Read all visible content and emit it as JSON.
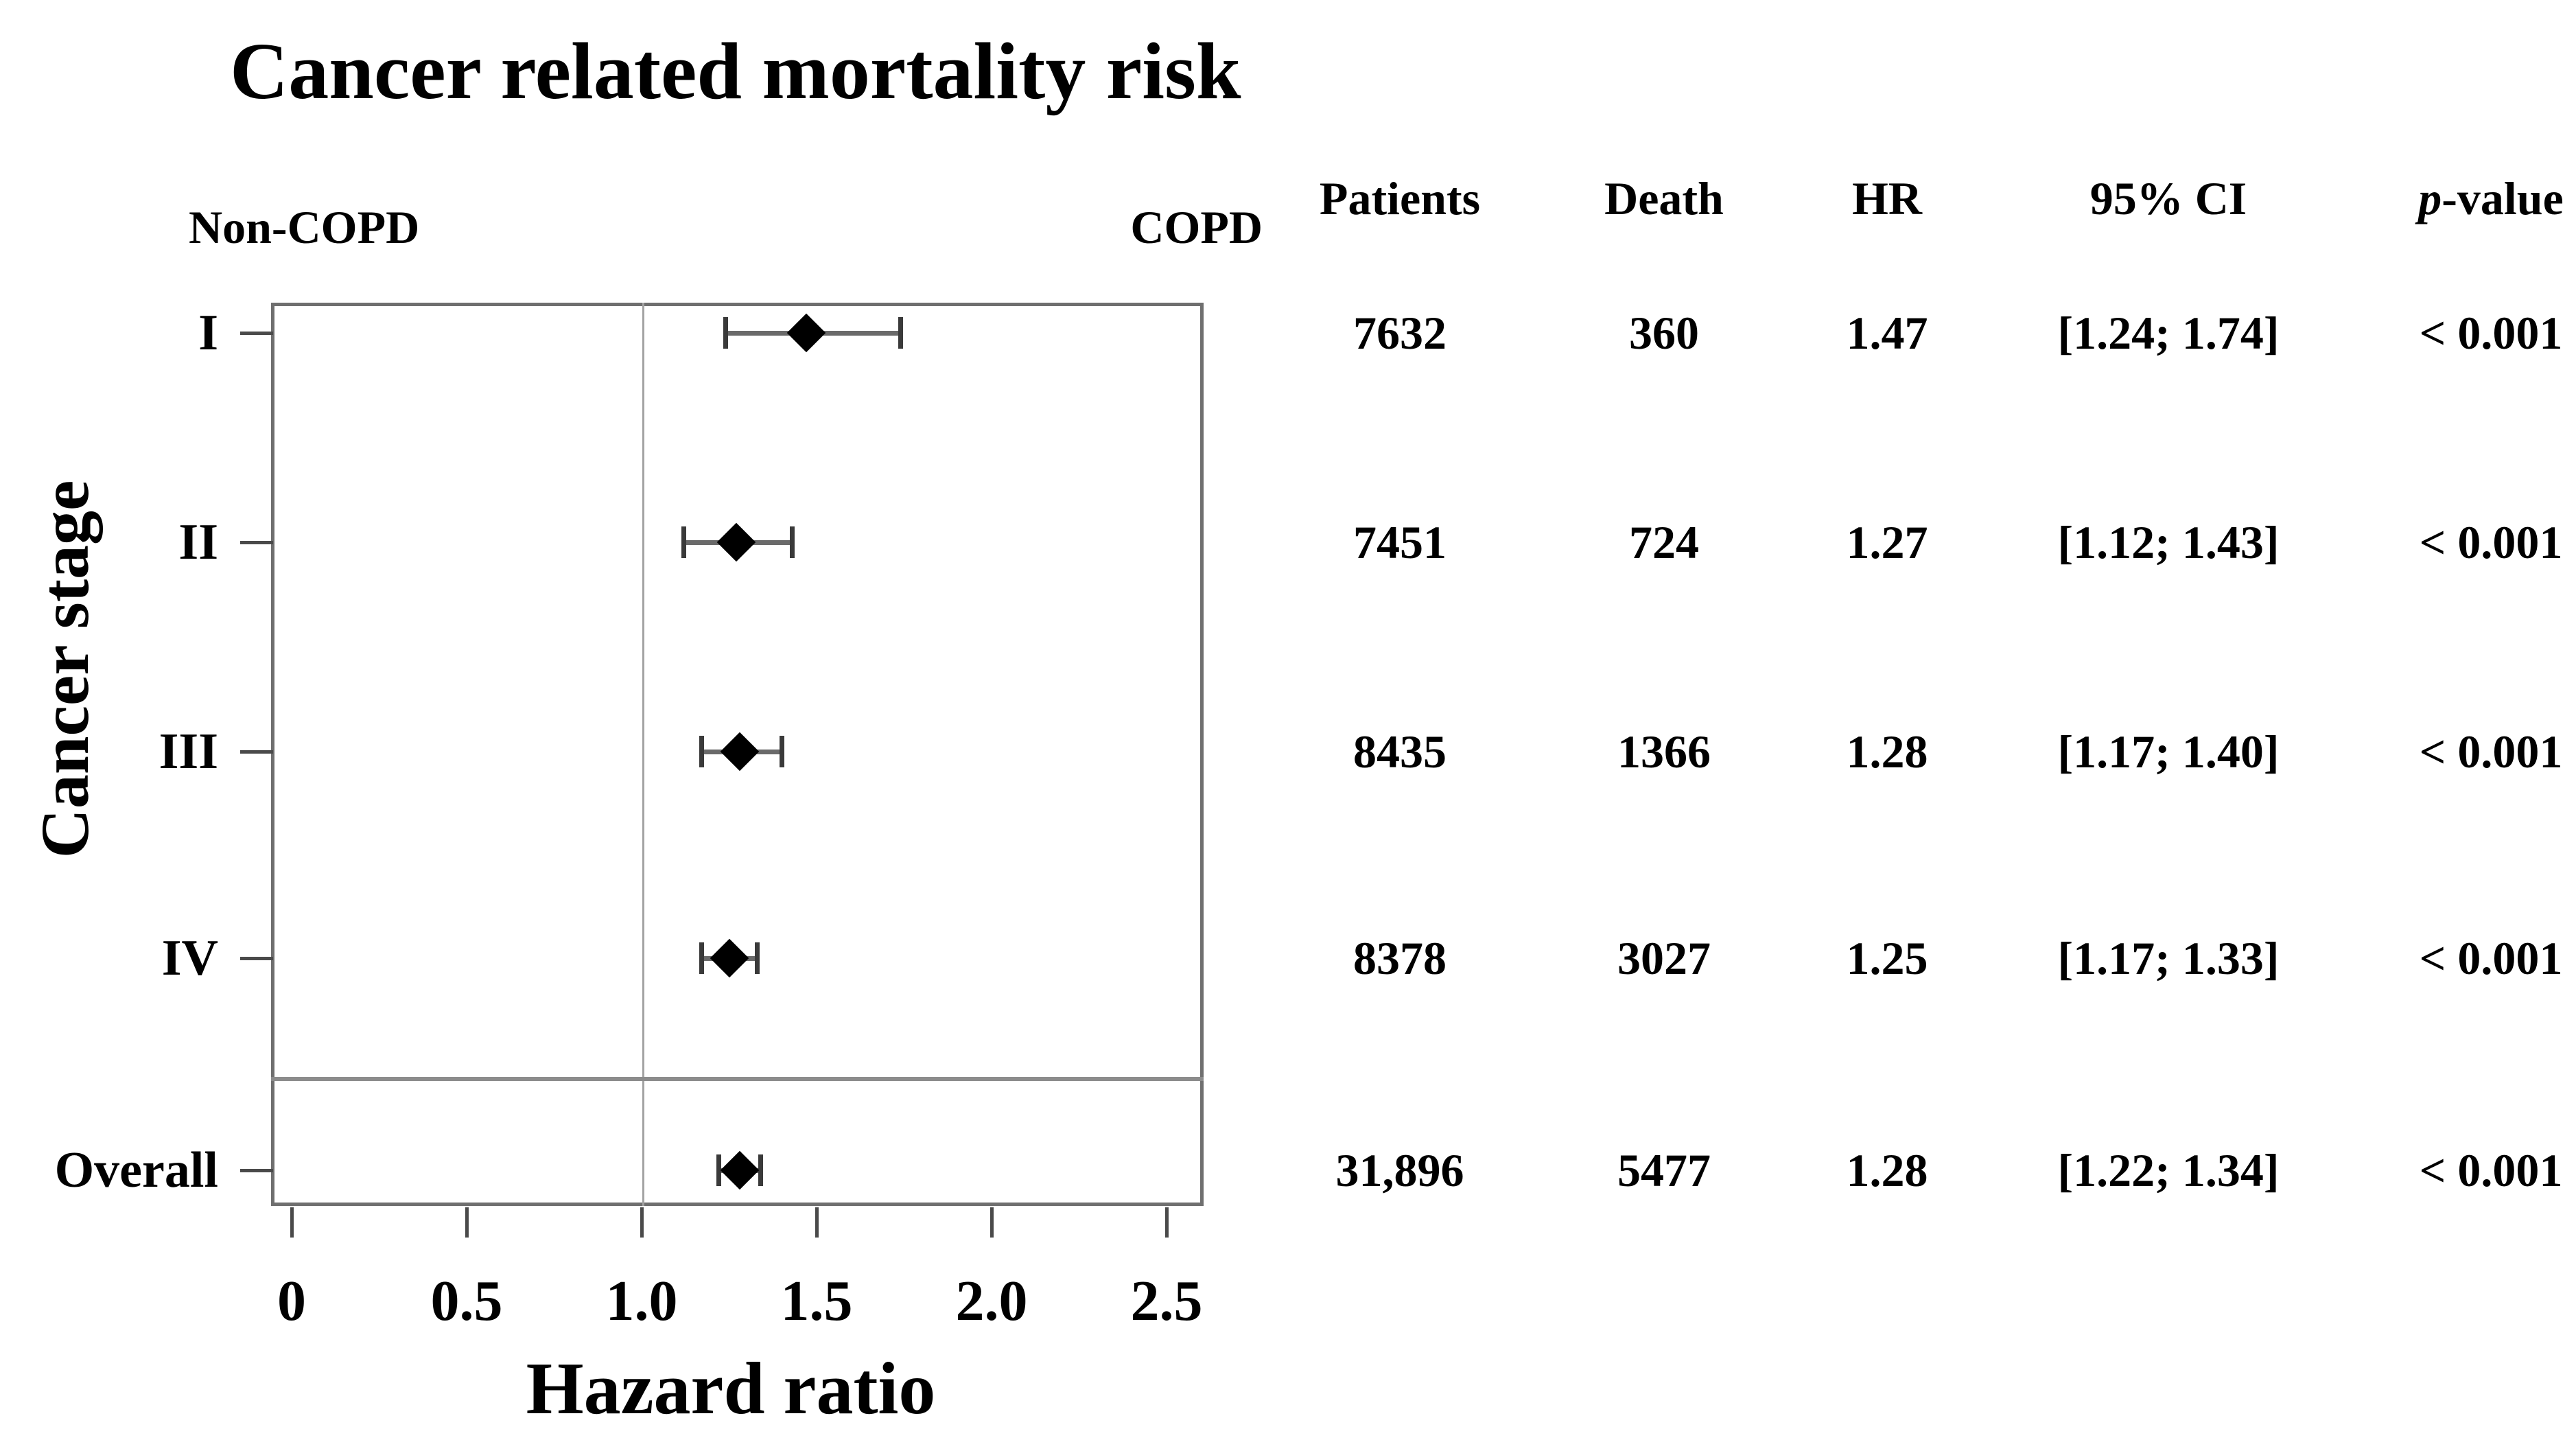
{
  "title": "Cancer related mortality risk",
  "group_labels": {
    "left": "Non-COPD",
    "right": "COPD"
  },
  "axes": {
    "y_label": "Cancer stage",
    "x_label": "Hazard ratio"
  },
  "table": {
    "headers": [
      {
        "text": "Patients"
      },
      {
        "text": "Death"
      },
      {
        "text": "HR"
      },
      {
        "text": "95% CI"
      },
      {
        "text": "p-value",
        "style": "italic-first"
      }
    ]
  },
  "chart_data": {
    "type": "scatter",
    "variant": "forest-plot",
    "title": "Cancer related mortality risk",
    "xlabel": "Hazard ratio",
    "ylabel": "Cancer stage",
    "xlim": [
      0,
      2.6
    ],
    "x_ticks": [
      0,
      0.5,
      1.0,
      1.5,
      2.0,
      2.5
    ],
    "x_tick_labels": [
      "0",
      "0.5",
      "1.0",
      "1.5",
      "2.0",
      "2.5"
    ],
    "reference_line_x": 1.0,
    "grid": false,
    "group_left_of_reference": "Non-COPD",
    "group_right_of_reference": "COPD",
    "rows": [
      {
        "label": "I",
        "patients": "7632",
        "death": "360",
        "hr": 1.47,
        "ci_low": 1.24,
        "ci_high": 1.74,
        "hr_text": "1.47",
        "ci_text": "[1.24; 1.74]",
        "p_text": "< 0.001",
        "overall": false
      },
      {
        "label": "II",
        "patients": "7451",
        "death": "724",
        "hr": 1.27,
        "ci_low": 1.12,
        "ci_high": 1.43,
        "hr_text": "1.27",
        "ci_text": "[1.12; 1.43]",
        "p_text": "< 0.001",
        "overall": false
      },
      {
        "label": "III",
        "patients": "8435",
        "death": "1366",
        "hr": 1.28,
        "ci_low": 1.17,
        "ci_high": 1.4,
        "hr_text": "1.28",
        "ci_text": "[1.17; 1.40]",
        "p_text": "< 0.001",
        "overall": false
      },
      {
        "label": "IV",
        "patients": "8378",
        "death": "3027",
        "hr": 1.25,
        "ci_low": 1.17,
        "ci_high": 1.33,
        "hr_text": "1.25",
        "ci_text": "[1.17; 1.33]",
        "p_text": "< 0.001",
        "overall": false
      },
      {
        "label": "Overall",
        "patients": "31,896",
        "death": "5477",
        "hr": 1.28,
        "ci_low": 1.22,
        "ci_high": 1.34,
        "hr_text": "1.28",
        "ci_text": "[1.22; 1.34]",
        "p_text": "< 0.001",
        "overall": true
      }
    ]
  }
}
